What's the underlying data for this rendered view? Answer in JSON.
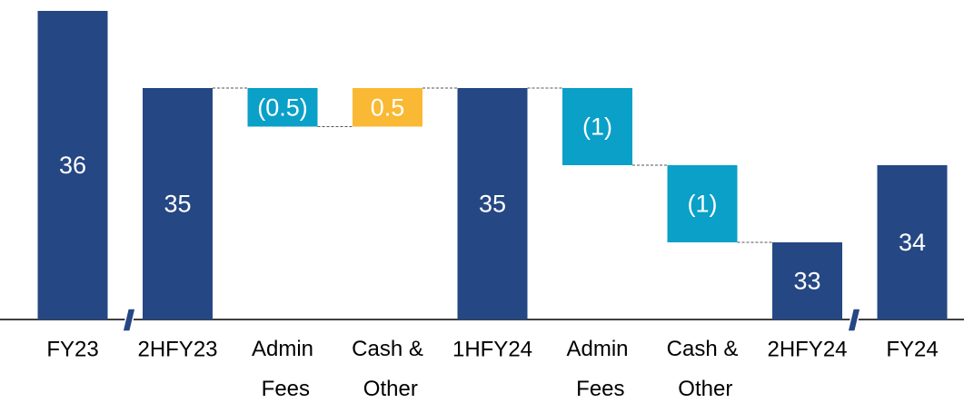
{
  "chart_data": {
    "type": "waterfall",
    "categories": [
      "FY23",
      "2HFY23",
      "Admin Fees",
      "Cash & Other",
      "1HFY24",
      "Admin Fees",
      "Cash & Other",
      "2HFY24",
      "FY24"
    ],
    "values": [
      36,
      35,
      -0.5,
      0.5,
      35,
      -1,
      -1,
      33,
      34
    ],
    "value_labels": [
      "36",
      "35",
      "(0.5)",
      "0.5",
      "35",
      "(1)",
      "(1)",
      "33",
      "34"
    ],
    "is_total": [
      true,
      true,
      false,
      false,
      true,
      false,
      false,
      true,
      true
    ],
    "total_color": "#254784",
    "decrease_color": "#0aa0c8",
    "increase_color": "#f9b934",
    "ylim": [
      32,
      36
    ]
  }
}
